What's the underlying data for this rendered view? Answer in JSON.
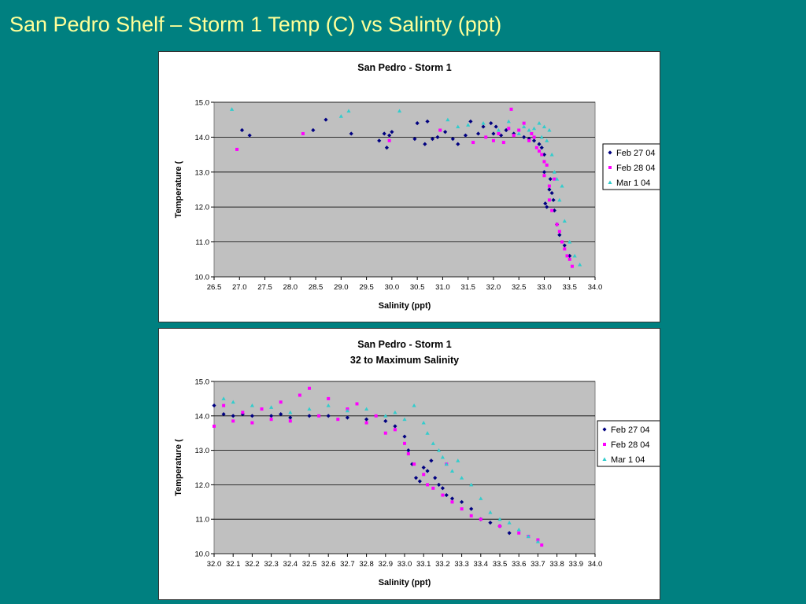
{
  "slide": {
    "title": "San Pedro Shelf – Storm 1 Temp (C) vs Salinty (ppt)"
  },
  "colors": {
    "background": "#008080",
    "title_text": "#ffff99",
    "plot_area": "#c0c0c0",
    "series_feb27": "#000080",
    "series_feb28": "#ff00ff",
    "series_mar1": "#33cccc"
  },
  "chart_data": [
    {
      "type": "scatter",
      "title": "San Pedro - Storm 1",
      "subtitle": "",
      "xlabel": "Salinity (ppt)",
      "ylabel": "Temperature (",
      "xlim": [
        26.5,
        34.0
      ],
      "ylim": [
        10.0,
        15.0
      ],
      "xticks": [
        "26.5",
        "27.0",
        "27.5",
        "28.0",
        "28.5",
        "29.0",
        "29.5",
        "30.0",
        "30.5",
        "31.0",
        "31.5",
        "32.0",
        "32.5",
        "33.0",
        "33.5",
        "34.0"
      ],
      "yticks": [
        "10.0",
        "11.0",
        "12.0",
        "13.0",
        "14.0",
        "15.0"
      ],
      "grid": "horizontal",
      "legend_position": "right",
      "series": [
        {
          "name": "Feb 27 04",
          "marker": "diamond",
          "x": [
            27.05,
            27.2,
            28.45,
            28.7,
            29.2,
            29.75,
            29.85,
            29.9,
            29.95,
            30.0,
            30.45,
            30.5,
            30.65,
            30.7,
            30.8,
            30.9,
            31.05,
            31.2,
            31.3,
            31.45,
            31.55,
            31.7,
            31.8,
            31.95,
            32.0,
            32.05,
            32.15,
            32.25,
            32.4,
            32.6,
            32.7,
            32.8,
            32.9,
            32.95,
            33.0,
            33.0,
            33.02,
            33.05,
            33.1,
            33.12,
            33.15,
            33.18,
            33.2,
            33.25,
            33.3,
            33.4,
            33.5
          ],
          "y": [
            14.2,
            14.05,
            14.2,
            14.5,
            14.1,
            13.9,
            14.1,
            13.7,
            14.05,
            14.15,
            13.95,
            14.4,
            13.8,
            14.45,
            13.95,
            14.0,
            14.15,
            13.95,
            13.8,
            14.05,
            14.45,
            14.1,
            14.3,
            14.4,
            14.1,
            14.3,
            14.05,
            14.2,
            14.1,
            14.0,
            13.95,
            13.9,
            13.8,
            13.7,
            13.5,
            13.0,
            12.1,
            12.0,
            12.5,
            12.8,
            12.4,
            12.2,
            11.9,
            11.5,
            11.2,
            10.9,
            10.6
          ]
        },
        {
          "name": "Feb 28 04",
          "marker": "square",
          "x": [
            26.95,
            28.25,
            29.95,
            30.95,
            31.6,
            31.85,
            32.0,
            32.1,
            32.2,
            32.3,
            32.35,
            32.4,
            32.5,
            32.6,
            32.7,
            32.75,
            32.8,
            32.85,
            32.9,
            32.95,
            33.0,
            33.0,
            33.05,
            33.1,
            33.1,
            33.15,
            33.2,
            33.25,
            33.3,
            33.35,
            33.4,
            33.45,
            33.5,
            33.55
          ],
          "y": [
            13.65,
            14.1,
            13.9,
            14.2,
            13.85,
            14.0,
            13.9,
            14.1,
            13.85,
            14.25,
            14.8,
            14.05,
            14.2,
            14.4,
            13.9,
            14.1,
            14.0,
            13.7,
            13.6,
            13.5,
            13.3,
            12.9,
            13.2,
            12.6,
            12.2,
            11.9,
            12.8,
            11.5,
            11.3,
            11.0,
            10.8,
            10.6,
            10.5,
            10.3
          ]
        },
        {
          "name": "Mar 1 04",
          "marker": "triangle",
          "x": [
            26.85,
            29.0,
            29.15,
            30.15,
            31.1,
            31.3,
            31.5,
            31.8,
            32.1,
            32.3,
            32.5,
            32.6,
            32.7,
            32.8,
            32.9,
            32.95,
            33.0,
            33.05,
            33.1,
            33.15,
            33.2,
            33.25,
            33.3,
            33.35,
            33.4,
            33.5,
            33.6,
            33.7
          ],
          "y": [
            14.8,
            14.6,
            14.75,
            14.75,
            14.5,
            14.3,
            14.35,
            14.4,
            14.2,
            14.45,
            14.1,
            14.3,
            14.2,
            14.25,
            14.4,
            14.0,
            14.3,
            13.9,
            14.2,
            13.5,
            13.0,
            12.8,
            12.2,
            12.6,
            11.6,
            11.0,
            10.6,
            10.35
          ]
        }
      ]
    },
    {
      "type": "scatter",
      "title": "San Pedro - Storm 1",
      "subtitle": "32 to Maximum Salinity",
      "xlabel": "Salinity (ppt)",
      "ylabel": "Temperature (",
      "xlim": [
        32.0,
        34.0
      ],
      "ylim": [
        10.0,
        15.0
      ],
      "xticks": [
        "32.0",
        "32.1",
        "32.2",
        "32.3",
        "32.4",
        "32.5",
        "32.6",
        "32.7",
        "32.8",
        "32.9",
        "33.0",
        "33.1",
        "33.2",
        "33.3",
        "33.4",
        "33.5",
        "33.6",
        "33.7",
        "33.8",
        "33.9",
        "34.0"
      ],
      "yticks": [
        "10.0",
        "11.0",
        "12.0",
        "13.0",
        "14.0",
        "15.0"
      ],
      "grid": "horizontal",
      "legend_position": "right",
      "series": [
        {
          "name": "Feb 27 04",
          "marker": "diamond",
          "x": [
            32.0,
            32.05,
            32.1,
            32.15,
            32.2,
            32.3,
            32.35,
            32.4,
            32.5,
            32.6,
            32.7,
            32.8,
            32.9,
            32.95,
            33.0,
            33.02,
            33.04,
            33.06,
            33.08,
            33.1,
            33.12,
            33.14,
            33.16,
            33.18,
            33.2,
            33.22,
            33.25,
            33.3,
            33.35,
            33.4,
            33.45,
            33.5,
            33.55
          ],
          "y": [
            14.3,
            14.05,
            14.0,
            14.05,
            14.0,
            14.0,
            14.05,
            13.95,
            14.0,
            14.0,
            13.95,
            13.9,
            13.85,
            13.7,
            13.4,
            13.0,
            12.6,
            12.2,
            12.1,
            12.5,
            12.4,
            12.7,
            12.2,
            12.0,
            11.9,
            11.7,
            11.6,
            11.5,
            11.3,
            11.0,
            10.9,
            10.8,
            10.6
          ]
        },
        {
          "name": "Feb 28 04",
          "marker": "square",
          "x": [
            32.0,
            32.05,
            32.1,
            32.15,
            32.2,
            32.25,
            32.3,
            32.35,
            32.4,
            32.45,
            32.5,
            32.55,
            32.6,
            32.65,
            32.7,
            32.75,
            32.8,
            32.85,
            32.9,
            32.95,
            33.0,
            33.02,
            33.05,
            33.1,
            33.12,
            33.15,
            33.2,
            33.22,
            33.25,
            33.3,
            33.35,
            33.4,
            33.5,
            33.6,
            33.65,
            33.7,
            33.72
          ],
          "y": [
            13.7,
            14.3,
            13.85,
            14.1,
            13.8,
            14.2,
            13.9,
            14.4,
            13.85,
            14.6,
            14.8,
            14.0,
            14.5,
            13.9,
            14.2,
            14.35,
            13.8,
            14.0,
            13.5,
            13.6,
            13.2,
            12.9,
            12.6,
            12.3,
            12.0,
            11.9,
            11.7,
            12.6,
            11.5,
            11.3,
            11.1,
            11.0,
            10.8,
            10.6,
            10.5,
            10.4,
            10.25
          ]
        },
        {
          "name": "Mar 1 04",
          "marker": "triangle",
          "x": [
            32.05,
            32.1,
            32.2,
            32.3,
            32.4,
            32.5,
            32.6,
            32.7,
            32.8,
            32.9,
            32.95,
            33.0,
            33.05,
            33.1,
            33.12,
            33.15,
            33.18,
            33.2,
            33.22,
            33.25,
            33.28,
            33.3,
            33.35,
            33.4,
            33.45,
            33.5,
            33.55,
            33.6,
            33.65,
            33.7
          ],
          "y": [
            14.5,
            14.4,
            14.3,
            14.25,
            14.1,
            14.2,
            14.3,
            14.15,
            14.2,
            14.0,
            14.1,
            13.9,
            14.3,
            13.8,
            13.5,
            13.2,
            13.0,
            12.8,
            12.6,
            12.4,
            12.7,
            12.2,
            12.0,
            11.6,
            11.2,
            11.0,
            10.9,
            10.7,
            10.5,
            10.35
          ]
        }
      ]
    }
  ]
}
